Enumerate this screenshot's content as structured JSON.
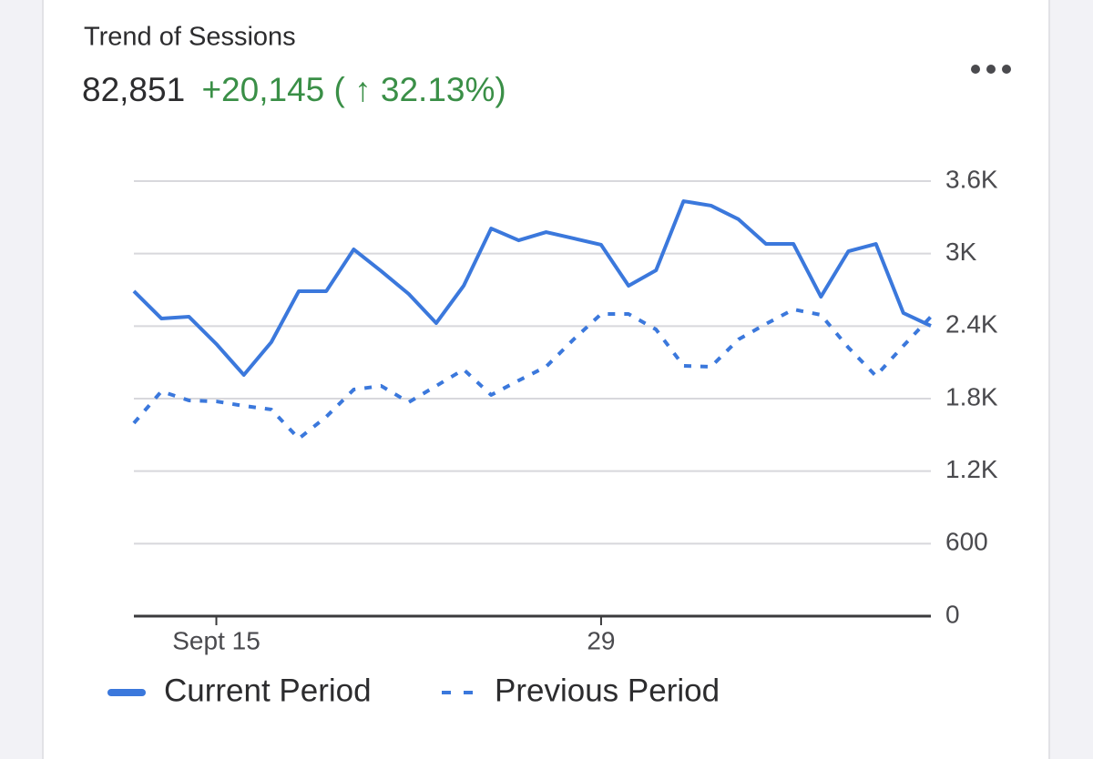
{
  "chart_data": {
    "type": "line",
    "title": "Trend of Sessions",
    "summary": {
      "total": "82,851",
      "change": "+20,145 ( ↑ 32.13%)"
    },
    "categories": [
      null,
      null,
      null,
      "Sept 15",
      null,
      null,
      null,
      null,
      null,
      null,
      null,
      null,
      null,
      null,
      null,
      null,
      null,
      "29",
      null,
      null,
      null,
      null,
      null,
      null,
      null,
      null,
      null,
      null,
      null,
      null
    ],
    "series": [
      {
        "name": "Current Period",
        "color": "#3b78dc",
        "style": "solid",
        "values": [
          2689,
          2463,
          2478,
          2252,
          1996,
          2267,
          2689,
          2689,
          3035,
          2855,
          2666,
          2425,
          2734,
          3208,
          3110,
          3178,
          3126,
          3073,
          2734,
          2862,
          3434,
          3397,
          3284,
          3080,
          3080,
          2643,
          3020,
          3080,
          2508,
          2402
        ]
      },
      {
        "name": "Previous Period",
        "color": "#3b78dc",
        "style": "dotted",
        "values": [
          1597,
          1860,
          1785,
          1777,
          1740,
          1710,
          1469,
          1650,
          1875,
          1905,
          1770,
          1905,
          2041,
          1830,
          1950,
          2064,
          2290,
          2500,
          2500,
          2372,
          2071,
          2064,
          2290,
          2418,
          2538,
          2493,
          2222,
          1988,
          2237,
          2478
        ]
      }
    ],
    "ylim": [
      0,
      3600
    ],
    "yticks": [
      0,
      600,
      {
        "value": 1200,
        "label": "1.2K"
      },
      {
        "value": 1800,
        "label": "1.8K"
      },
      {
        "value": 2400,
        "label": "2.4K"
      },
      {
        "value": 3000,
        "label": "3K"
      },
      {
        "value": 3600,
        "label": "3.6K"
      }
    ],
    "grid": true,
    "legend": "bottom"
  }
}
